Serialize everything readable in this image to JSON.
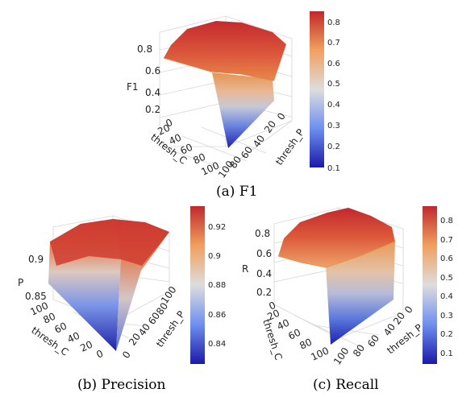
{
  "chart_data": [
    {
      "type": "surface",
      "caption": "(a) F1",
      "zlabel": "F1",
      "xlabel": "thresh_C",
      "ylabel": "thresh_P",
      "x_ticks": [
        "0",
        "20",
        "40",
        "60",
        "80",
        "100"
      ],
      "y_ticks": [
        "0",
        "20",
        "40",
        "60",
        "80",
        "100"
      ],
      "z_ticks": [
        "0.2",
        "0.4",
        "0.6",
        "0.8"
      ],
      "colorbar_ticks": [
        "0.1",
        "0.2",
        "0.3",
        "0.4",
        "0.5",
        "0.6",
        "0.7",
        "0.8"
      ],
      "colorscale": [
        "#1a1aa8",
        "#6f8ff0",
        "#dddddd",
        "#f0a060",
        "#c0292b"
      ],
      "zlim": [
        0.1,
        0.87
      ]
    },
    {
      "type": "surface",
      "caption": "(b) Precision",
      "zlabel": "P",
      "xlabel": "thresh_C",
      "ylabel": "thresh_P",
      "x_ticks": [
        "100",
        "80",
        "60",
        "40",
        "20",
        "0"
      ],
      "y_ticks": [
        "0",
        "20",
        "40",
        "60",
        "80",
        "100"
      ],
      "z_ticks": [
        "0.85",
        "0.9"
      ],
      "colorbar_ticks": [
        "0.84",
        "0.86",
        "0.88",
        "0.9",
        "0.92"
      ],
      "colorscale": [
        "#1a1aa8",
        "#6f8ff0",
        "#dddddd",
        "#f0a060",
        "#c0292b"
      ],
      "zlim": [
        0.83,
        0.93
      ]
    },
    {
      "type": "surface",
      "caption": "(c) Recall",
      "zlabel": "R",
      "xlabel": "thresh_C",
      "ylabel": "thresh_P",
      "x_ticks": [
        "0",
        "20",
        "40",
        "60",
        "80",
        "100"
      ],
      "y_ticks": [
        "0",
        "20",
        "40",
        "60",
        "80",
        "100"
      ],
      "z_ticks": [
        "0.2",
        "0.4",
        "0.6",
        "0.8"
      ],
      "colorbar_ticks": [
        "0.1",
        "0.2",
        "0.3",
        "0.4",
        "0.5",
        "0.6",
        "0.7",
        "0.8"
      ],
      "colorscale": [
        "#1a1aa8",
        "#6f8ff0",
        "#dddddd",
        "#f0a060",
        "#c0292b"
      ],
      "zlim": [
        0.05,
        0.87
      ]
    }
  ]
}
